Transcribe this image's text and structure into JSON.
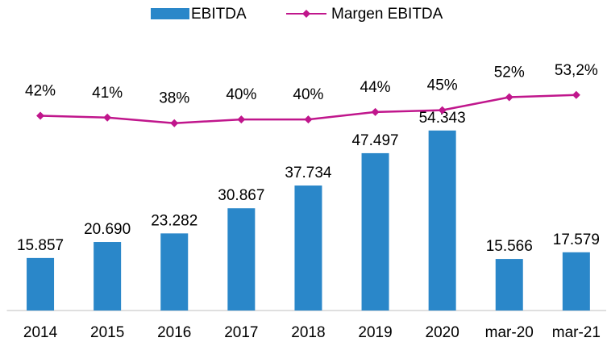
{
  "chart_data": {
    "type": "bar",
    "categories": [
      "2014",
      "2015",
      "2016",
      "2017",
      "2018",
      "2019",
      "2020",
      "mar-20",
      "mar-21"
    ],
    "series": [
      {
        "name": "EBITDA",
        "type": "bar",
        "color": "#2a87c9",
        "values": [
          15857,
          20690,
          23282,
          30867,
          37734,
          47497,
          54343,
          15566,
          17579
        ],
        "value_labels": [
          "15.857",
          "20.690",
          "23.282",
          "30.867",
          "37.734",
          "47.497",
          "54.343",
          "15.566",
          "17.579"
        ]
      },
      {
        "name": "Margen EBITDA",
        "type": "line",
        "axis": "y2",
        "color": "#c0168c",
        "values": [
          42,
          41,
          38,
          40,
          40,
          44,
          45,
          52,
          53.2
        ],
        "value_labels": [
          "42%",
          "41%",
          "38%",
          "40%",
          "40%",
          "44%",
          "45%",
          "52%",
          "53,2%"
        ]
      }
    ],
    "ylim": [
      0,
      84000
    ],
    "y2lim": [
      -63,
      87
    ],
    "legend": "top"
  }
}
